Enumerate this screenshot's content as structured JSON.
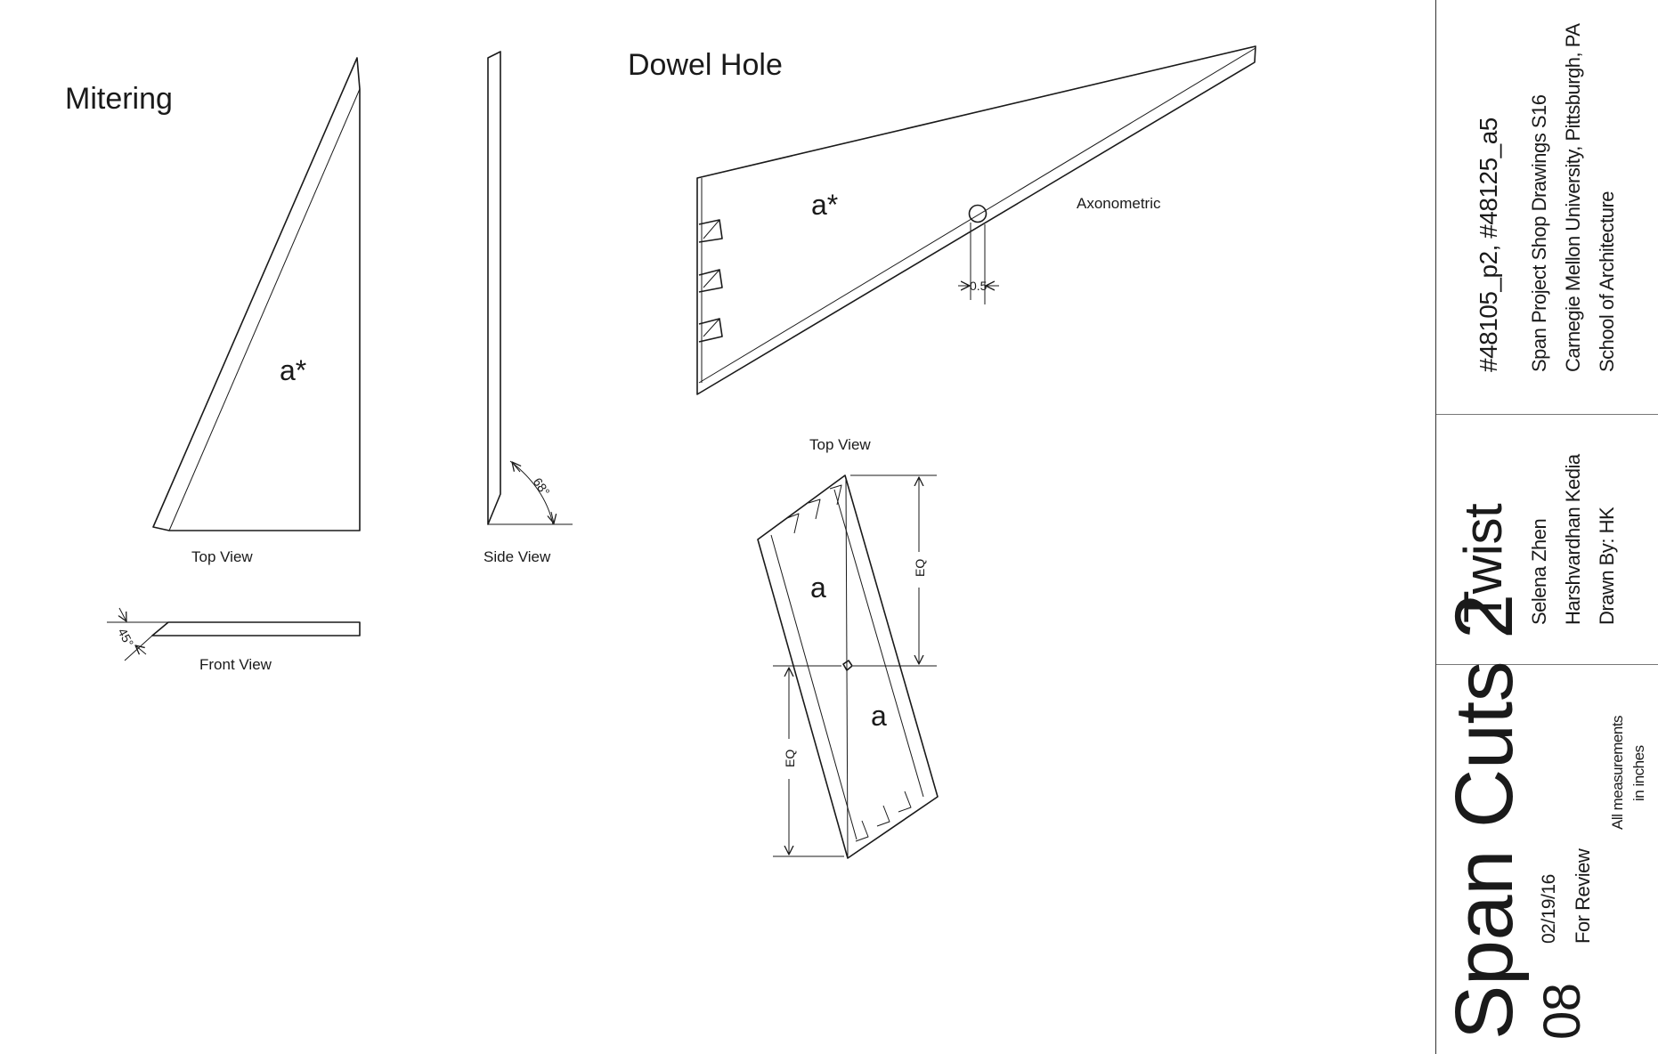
{
  "mitering": {
    "title": "Mitering",
    "piece_label": "a*",
    "top_view_label": "Top View",
    "front_view_label": "Front View",
    "side_view_label": "Side View",
    "angle_front": "45°",
    "angle_side": "68°"
  },
  "dowel_hole": {
    "title": "Dowel Hole",
    "piece_label": "a*",
    "axonometric_label": "Axonometric",
    "dimension": "0.5",
    "top_view_label": "Top View",
    "piece_a_label": "a",
    "piece_a2_label": "a",
    "eq_label": "EQ",
    "eq_label2": "EQ"
  },
  "title_block": {
    "ids": "#48105_p2, #48125_a5",
    "course": "Span Project Shop Drawings S16",
    "university": "Carnegie Mellon University, Pittsburgh, PA",
    "school": "School of Architecture",
    "project": "Twist",
    "author1": "Selena Zhen",
    "author2": "Harshvardhan Kedia",
    "drawn_by": "Drawn By: HK",
    "sheet_title": "Span Cuts 2",
    "sheet_number": "08",
    "date": "02/19/16",
    "status": "For Review",
    "note_line1": "All measurements",
    "note_line2": "in inches"
  }
}
